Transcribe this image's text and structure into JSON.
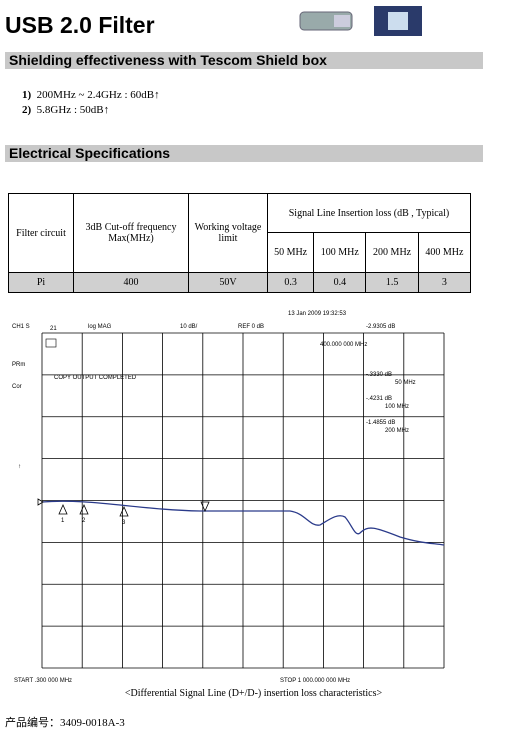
{
  "header": {
    "title": "USB 2.0 Filter"
  },
  "shielding": {
    "title": "Shielding effectiveness with Tescom Shield box",
    "items": [
      {
        "num": "1)",
        "text": "200MHz ~ 2.4GHz : 60dB↑"
      },
      {
        "num": "2)",
        "text": "5.8GHz :   50dB↑"
      }
    ]
  },
  "specs": {
    "title": "Electrical Specifications",
    "table": {
      "headers": [
        "Filter circuit",
        "3dB Cut-off frequency Max(MHz)",
        "Working voltage limit",
        "Signal Line Insertion loss (dB , Typical)"
      ],
      "subheaders": [
        "50 MHz",
        "100 MHz",
        "200 MHz",
        "400 MHz"
      ],
      "rows": [
        [
          "Pi",
          400,
          "50V",
          0.3,
          0.4,
          1.5,
          3
        ]
      ]
    }
  },
  "plot": {
    "timestamp": "13 Jan 2009 19:32:53",
    "channel": "CH1 S",
    "param": "21",
    "format": "log MAG",
    "scale": "10 dB/",
    "ref": "REF 0 dB",
    "marker_value": "-2.9305 dB",
    "marker_freq": "400.000 000 MHz",
    "status": "COPY OUTPUT COMPLETED",
    "prm": "PRm",
    "cor": "Cor",
    "readouts": [
      {
        "value": "-.3330 dB",
        "freq": "50 MHz"
      },
      {
        "value": "-.4231 dB",
        "freq": "100 MHz"
      },
      {
        "value": "-1.4855 dB",
        "freq": "200 MHz"
      }
    ],
    "marker_labels": [
      "1",
      "2",
      "3"
    ],
    "start": "START .300 000 MHz",
    "stop": "STOP 1 000.000 000 MHz"
  },
  "caption": "<Differential Signal Line (D+/D-) insertion loss characteristics>",
  "footer": "产品编号：3409-0018A-3"
}
